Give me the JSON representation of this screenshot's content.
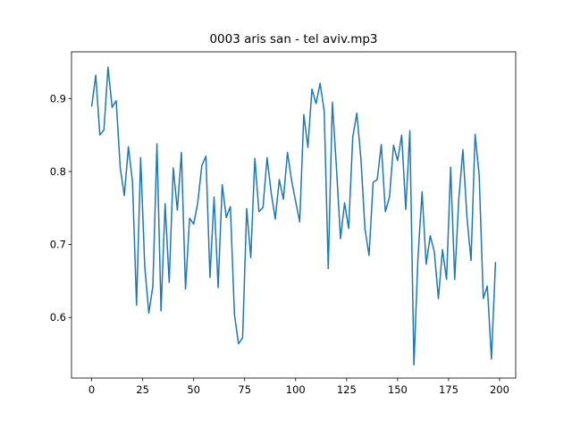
{
  "chart_data": {
    "type": "line",
    "title": "0003 aris san - tel aviv.mp3",
    "x": [
      0,
      2,
      4,
      6,
      8,
      10,
      12,
      14,
      16,
      18,
      20,
      22,
      24,
      26,
      28,
      30,
      32,
      34,
      36,
      38,
      40,
      42,
      44,
      46,
      48,
      50,
      52,
      54,
      56,
      58,
      60,
      62,
      64,
      66,
      68,
      70,
      72,
      74,
      76,
      78,
      80,
      82,
      84,
      86,
      88,
      90,
      92,
      94,
      96,
      98,
      100,
      102,
      104,
      106,
      108,
      110,
      112,
      114,
      116,
      118,
      120,
      122,
      124,
      126,
      128,
      130,
      132,
      134,
      136,
      138,
      140,
      142,
      144,
      146,
      148,
      150,
      152,
      154,
      156,
      158,
      160,
      162,
      164,
      166,
      168,
      170,
      172,
      174,
      176,
      178,
      180,
      182,
      184,
      186,
      188,
      190,
      192,
      194,
      196,
      198
    ],
    "series": [
      {
        "color": "#1f77b4",
        "values": [
          0.889,
          0.932,
          0.85,
          0.857,
          0.943,
          0.888,
          0.897,
          0.805,
          0.767,
          0.834,
          0.786,
          0.617,
          0.819,
          0.671,
          0.606,
          0.643,
          0.838,
          0.609,
          0.756,
          0.648,
          0.805,
          0.747,
          0.826,
          0.639,
          0.736,
          0.728,
          0.757,
          0.808,
          0.821,
          0.655,
          0.765,
          0.641,
          0.782,
          0.737,
          0.752,
          0.604,
          0.564,
          0.572,
          0.749,
          0.682,
          0.818,
          0.745,
          0.751,
          0.819,
          0.771,
          0.735,
          0.789,
          0.762,
          0.826,
          0.788,
          0.759,
          0.731,
          0.878,
          0.833,
          0.913,
          0.893,
          0.921,
          0.883,
          0.667,
          0.895,
          0.806,
          0.708,
          0.757,
          0.722,
          0.847,
          0.88,
          0.818,
          0.721,
          0.685,
          0.785,
          0.789,
          0.837,
          0.745,
          0.765,
          0.836,
          0.815,
          0.85,
          0.748,
          0.856,
          0.535,
          0.683,
          0.772,
          0.673,
          0.712,
          0.69,
          0.626,
          0.693,
          0.652,
          0.806,
          0.652,
          0.762,
          0.83,
          0.738,
          0.678,
          0.851,
          0.795,
          0.626,
          0.643,
          0.543,
          0.676
        ]
      }
    ],
    "xlim": [
      -9.9,
      207.9
    ],
    "ylim": [
      0.517,
      0.964
    ],
    "xticks": [
      0,
      25,
      50,
      75,
      100,
      125,
      150,
      175,
      200
    ],
    "yticks": [
      0.6,
      0.7,
      0.8,
      0.9
    ]
  }
}
